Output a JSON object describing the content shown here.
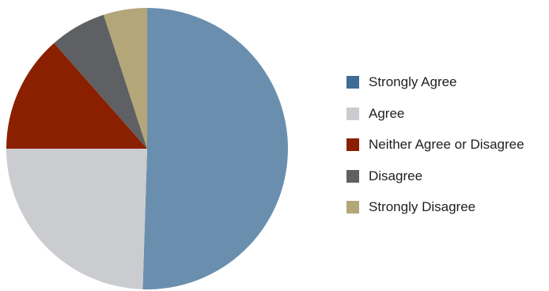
{
  "chart_data": {
    "type": "pie",
    "title": "",
    "series": [
      {
        "name": "Strongly Agree",
        "value": 50.5,
        "color": "#6a8fae"
      },
      {
        "name": "Agree",
        "value": 24.5,
        "color": "#cbcccf"
      },
      {
        "name": "Neither Agree or Disagree",
        "value": 13.5,
        "color": "#8a2000"
      },
      {
        "name": "Disagree",
        "value": 6.5,
        "color": "#5f6063"
      },
      {
        "name": "Strongly Disagree",
        "value": 5.0,
        "color": "#b3a77a"
      }
    ],
    "legend_position": "right",
    "start_angle": "top, clockwise"
  },
  "legend": {
    "items": [
      {
        "label": "Strongly Agree",
        "color": "#3f6c94"
      },
      {
        "label": "Agree",
        "color": "#cbcccf"
      },
      {
        "label": "Neither Agree or Disagree",
        "color": "#8a2000"
      },
      {
        "label": "Disagree",
        "color": "#5f6063"
      },
      {
        "label": "Strongly Disagree",
        "color": "#b3a77a"
      }
    ]
  }
}
